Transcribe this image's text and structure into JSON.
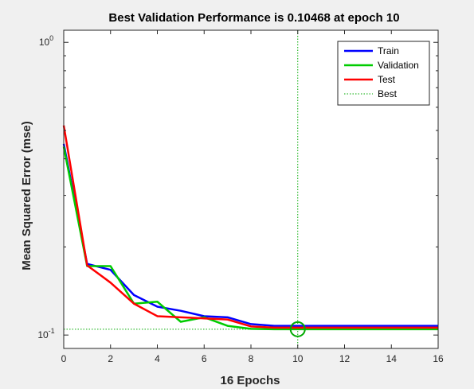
{
  "chart_data": {
    "type": "line",
    "title": "Best Validation Performance is 0.10468 at epoch 10",
    "xlabel": "16 Epochs",
    "ylabel": "Mean Squared Error  (mse)",
    "xlim": [
      0,
      16
    ],
    "ylim": [
      0.09,
      1.1
    ],
    "yscale": "log",
    "xticks": [
      0,
      2,
      4,
      6,
      8,
      10,
      12,
      14,
      16
    ],
    "yticks": [
      {
        "base": "10",
        "exp": "-1",
        "value": 0.1
      },
      {
        "base": "10",
        "exp": "0",
        "value": 1
      }
    ],
    "grid": false,
    "legend_position": "top-right",
    "x": [
      0,
      1,
      2,
      3,
      4,
      5,
      6,
      7,
      8,
      9,
      10,
      11,
      12,
      13,
      14,
      15,
      16
    ],
    "series": [
      {
        "name": "Train",
        "color": "#0000ff",
        "values": [
          0.45,
          0.175,
          0.167,
          0.137,
          0.125,
          0.121,
          0.116,
          0.115,
          0.109,
          0.1075,
          0.1075,
          0.1075,
          0.1075,
          0.1075,
          0.1075,
          0.1075,
          0.1075
        ]
      },
      {
        "name": "Validation",
        "color": "#00cc00",
        "values": [
          0.44,
          0.172,
          0.172,
          0.128,
          0.13,
          0.111,
          0.115,
          0.1075,
          0.105,
          0.1047,
          0.10468,
          0.1047,
          0.1047,
          0.1047,
          0.1047,
          0.1047,
          0.1047
        ]
      },
      {
        "name": "Test",
        "color": "#ff0000",
        "values": [
          0.52,
          0.173,
          0.151,
          0.128,
          0.116,
          0.115,
          0.114,
          0.113,
          0.107,
          0.106,
          0.106,
          0.106,
          0.106,
          0.106,
          0.106,
          0.106,
          0.106
        ]
      }
    ],
    "best": {
      "name": "Best",
      "epoch": 10,
      "value": 0.10468,
      "color": "#00aa00"
    }
  }
}
